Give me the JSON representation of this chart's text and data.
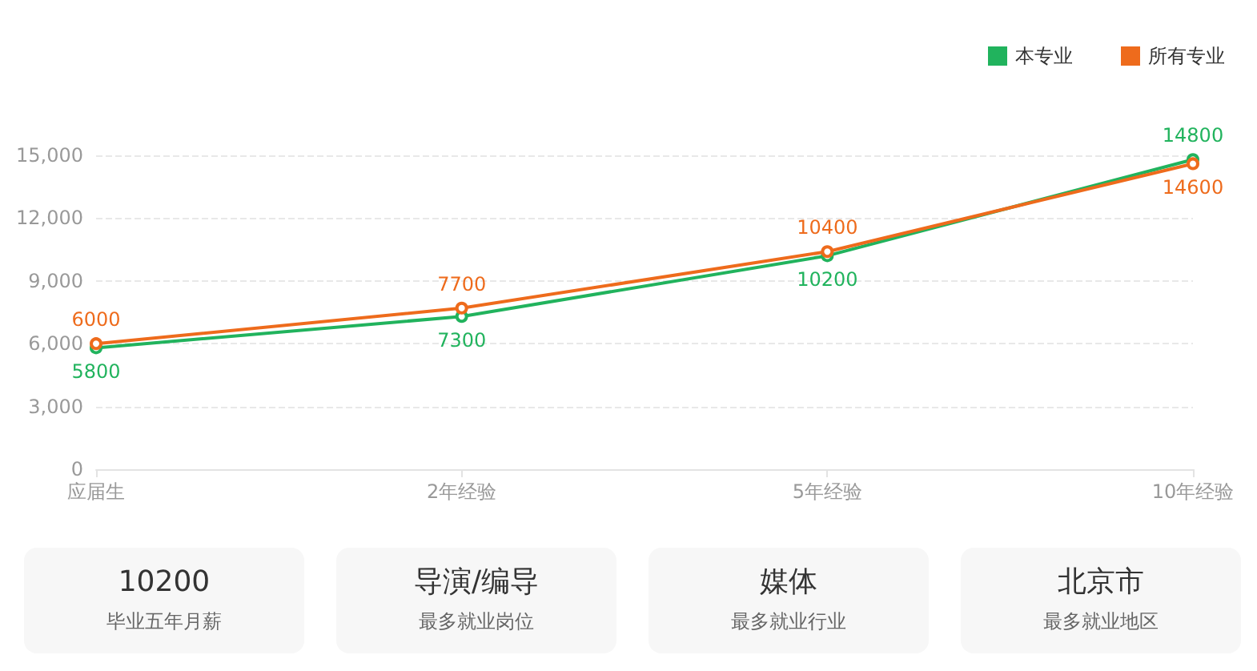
{
  "chart_data": [
    {
      "type": "line",
      "categories": [
        "应届生",
        "2年经验",
        "5年经验",
        "10年经验"
      ],
      "series": [
        {
          "name": "本专业",
          "color": "#21b35d",
          "values": [
            5800,
            7300,
            10200,
            14800
          ]
        },
        {
          "name": "所有专业",
          "color": "#ee6b1c",
          "values": [
            6000,
            7700,
            10400,
            14600
          ]
        }
      ],
      "ylim": [
        0,
        15000
      ],
      "yticks": [
        0,
        {
          "value": 3000,
          "label": "3,000"
        },
        {
          "value": 6000,
          "label": "6,000"
        },
        {
          "value": 9000,
          "label": "9,000"
        },
        {
          "value": 12000,
          "label": "12,000"
        },
        {
          "value": 15000,
          "label": "15,000"
        }
      ],
      "grid": "y",
      "legend": "top right",
      "marker": "circle",
      "line_style": "solid",
      "data_labels": true
    },
    {
      "type": "other",
      "annotations": [
        "10200",
        "毕业五年月薪",
        "导演/编导",
        "最多就业岗位",
        "媒体",
        "最多就业行业",
        "北京市",
        "最多就业地区"
      ]
    }
  ]
}
